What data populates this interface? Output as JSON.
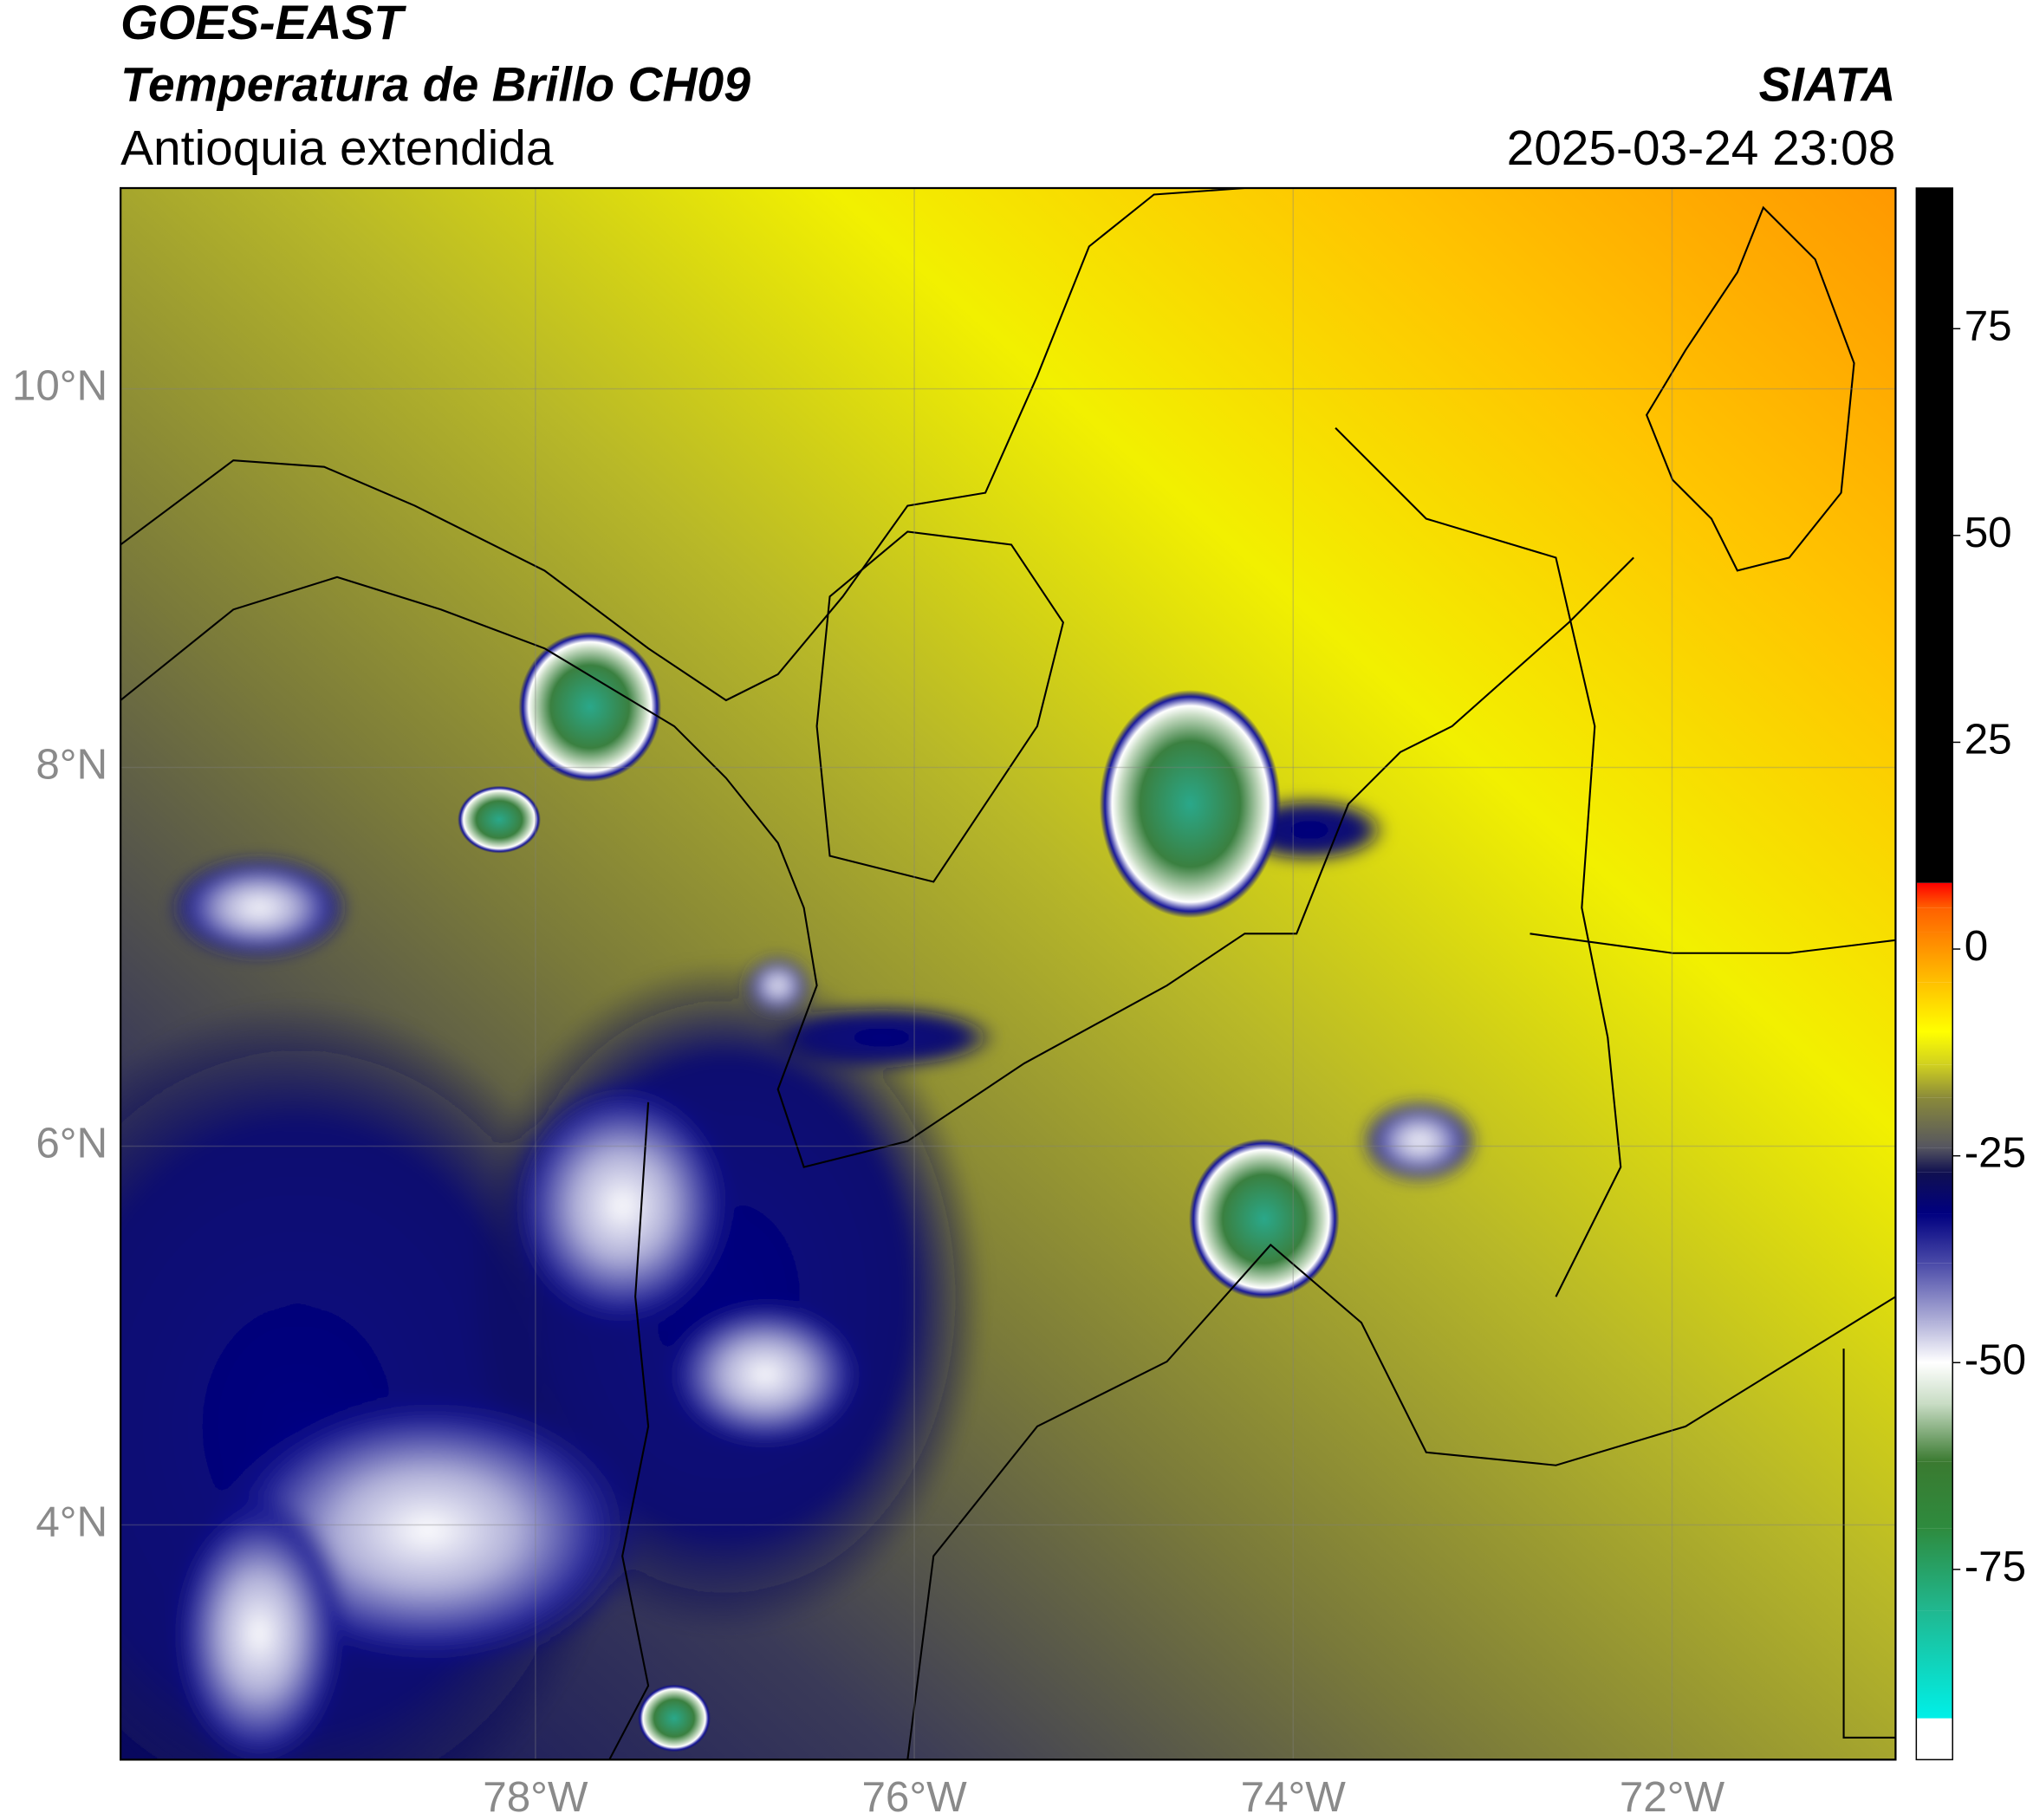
{
  "header": {
    "source": "GOES-EAST",
    "title": "Temperatura de Brillo CH09",
    "region": "Antioquia extendida",
    "agency": "SIATA",
    "datetime": "2025-03-24 23:08"
  },
  "map": {
    "xlim": [
      -80.19,
      -70.82
    ],
    "ylim": [
      2.76,
      11.06
    ],
    "xticks": [
      {
        "value": -78,
        "label": "78°W"
      },
      {
        "value": -76,
        "label": "76°W"
      },
      {
        "value": -74,
        "label": "74°W"
      },
      {
        "value": -72,
        "label": "72°W"
      }
    ],
    "yticks": [
      {
        "value": 4,
        "label": "4°N"
      },
      {
        "value": 6,
        "label": "6°N"
      },
      {
        "value": 8,
        "label": "8°N"
      },
      {
        "value": 10,
        "label": "10°N"
      }
    ],
    "grid": true
  },
  "colorbar": {
    "lim": [
      -98,
      92
    ],
    "ticks": [
      -75,
      -50,
      -25,
      0,
      25,
      50,
      75
    ],
    "stops": [
      {
        "value": -98,
        "color": "#ffffff"
      },
      {
        "value": -93,
        "color": "#ffffff"
      },
      {
        "value": -93,
        "color": "#00f0e8"
      },
      {
        "value": -80,
        "color": "#20b890"
      },
      {
        "value": -70,
        "color": "#2e8b3e"
      },
      {
        "value": -62,
        "color": "#3a7a30"
      },
      {
        "value": -55,
        "color": "#c8dcc4"
      },
      {
        "value": -50,
        "color": "#ffffff"
      },
      {
        "value": -45,
        "color": "#b0b0d8"
      },
      {
        "value": -38,
        "color": "#4a4aa8"
      },
      {
        "value": -32,
        "color": "#000080"
      },
      {
        "value": -27,
        "color": "#101050"
      },
      {
        "value": -24,
        "color": "#555560"
      },
      {
        "value": -18,
        "color": "#8a8a3a"
      },
      {
        "value": -14,
        "color": "#d0d020"
      },
      {
        "value": -10,
        "color": "#ffff00"
      },
      {
        "value": -4,
        "color": "#ffc000"
      },
      {
        "value": 2,
        "color": "#ff8000"
      },
      {
        "value": 5,
        "color": "#ff6000"
      },
      {
        "value": 8,
        "color": "#ff0000"
      },
      {
        "value": 8,
        "color": "#000000"
      },
      {
        "value": 92,
        "color": "#000000"
      }
    ]
  }
}
